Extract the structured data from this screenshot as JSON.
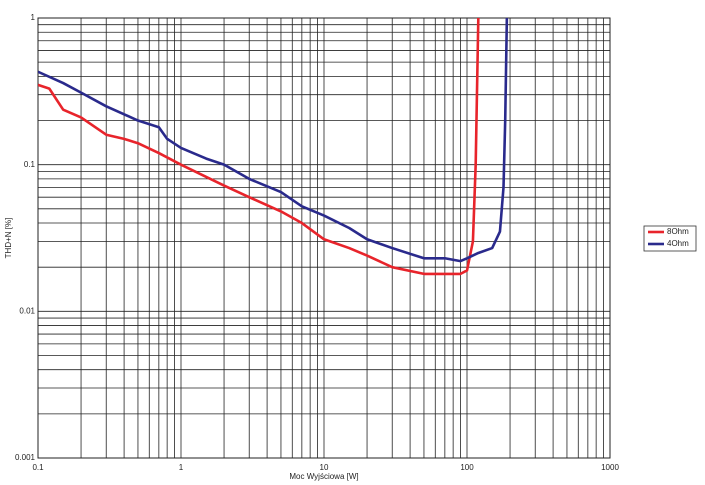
{
  "chart_data": {
    "type": "line",
    "xlabel": "Moc Wyjściowa [W]",
    "ylabel": "THD+N [%]",
    "xscale": "log",
    "yscale": "log",
    "xlim": [
      0.1,
      1000
    ],
    "ylim": [
      0.001,
      1
    ],
    "xticks": [
      0.1,
      1,
      10,
      100,
      1000
    ],
    "yticks": [
      0.001,
      0.01,
      0.1,
      1
    ],
    "xminorticks": [
      0.2,
      0.3,
      0.4,
      0.5,
      0.6,
      0.7,
      0.8,
      0.9,
      2,
      3,
      4,
      5,
      6,
      7,
      8,
      9,
      20,
      30,
      40,
      50,
      60,
      70,
      80,
      90,
      200,
      300,
      400,
      500,
      600,
      700,
      800,
      900
    ],
    "yminorticks": [
      0.002,
      0.003,
      0.004,
      0.005,
      0.006,
      0.007,
      0.008,
      0.009,
      0.02,
      0.03,
      0.04,
      0.05,
      0.06,
      0.07,
      0.08,
      0.09,
      0.2,
      0.3,
      0.4,
      0.5,
      0.6,
      0.7,
      0.8,
      0.9
    ],
    "grid": true,
    "legend": "right",
    "series": [
      {
        "name": "8Ohm",
        "color": "#e8242b",
        "x": [
          0.1,
          0.12,
          0.15,
          0.2,
          0.3,
          0.4,
          0.5,
          0.7,
          1,
          2,
          3,
          5,
          7,
          10,
          15,
          20,
          30,
          50,
          70,
          90,
          100,
          110,
          115,
          120
        ],
        "values": [
          0.35,
          0.33,
          0.237,
          0.21,
          0.16,
          0.15,
          0.14,
          0.12,
          0.1,
          0.072,
          0.06,
          0.048,
          0.04,
          0.031,
          0.027,
          0.024,
          0.02,
          0.018,
          0.018,
          0.018,
          0.019,
          0.03,
          0.1,
          1
        ]
      },
      {
        "name": "4Ohm",
        "color": "#2a2a8c",
        "x": [
          0.1,
          0.15,
          0.2,
          0.3,
          0.5,
          0.7,
          0.8,
          1,
          1.5,
          2,
          3,
          5,
          7,
          10,
          15,
          20,
          30,
          50,
          70,
          90,
          100,
          120,
          150,
          170,
          180,
          185,
          190
        ],
        "values": [
          0.43,
          0.36,
          0.31,
          0.25,
          0.2,
          0.18,
          0.15,
          0.13,
          0.11,
          0.1,
          0.08,
          0.065,
          0.052,
          0.045,
          0.037,
          0.031,
          0.027,
          0.023,
          0.023,
          0.022,
          0.023,
          0.025,
          0.027,
          0.035,
          0.07,
          0.2,
          1
        ]
      }
    ]
  }
}
